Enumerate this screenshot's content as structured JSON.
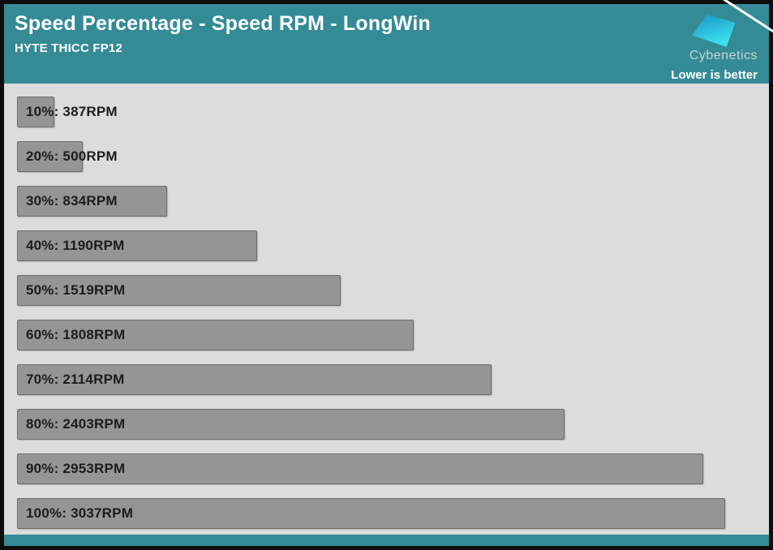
{
  "header": {
    "title": "Speed Percentage - Speed RPM - LongWin",
    "subtitle": "HYTE THICC FP12",
    "brand": "Cybenetics",
    "note": "Lower is better"
  },
  "chart_data": {
    "type": "bar",
    "orientation": "horizontal",
    "title": "Speed Percentage - Speed RPM - LongWin",
    "subtitle": "HYTE THICC FP12",
    "categories": [
      "10%",
      "20%",
      "30%",
      "40%",
      "50%",
      "60%",
      "70%",
      "80%",
      "90%",
      "100%"
    ],
    "values": [
      387,
      500,
      834,
      1190,
      1519,
      1808,
      2114,
      2403,
      2953,
      3037
    ],
    "unit": "RPM",
    "label_separator": ": ",
    "xlim": [
      240,
      3160
    ],
    "grid": false,
    "legend": false,
    "annotation": "Lower is better"
  },
  "theme": {
    "accent_teal": "#348b96",
    "plot_background": "#dcdcdc",
    "bar_fill": "#959595",
    "bar_border": "#6e6e6e",
    "label_color": "#1c1c1c",
    "frame_border": "#0d0d0d",
    "logo_gradient_start": "#1795c5",
    "logo_gradient_end": "#3fe0f0"
  }
}
